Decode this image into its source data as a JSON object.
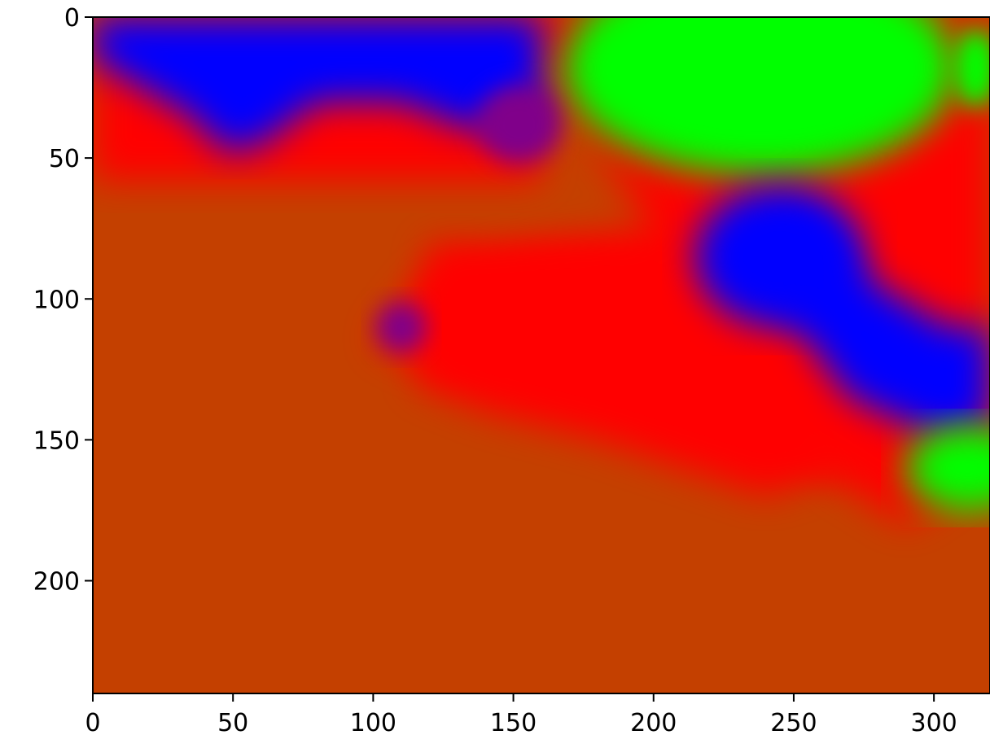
{
  "chart_data": {
    "type": "heatmap",
    "title": "",
    "xlabel": "",
    "ylabel": "",
    "xlim": [
      0,
      320
    ],
    "ylim": [
      240,
      0
    ],
    "x_ticks": [
      0,
      50,
      100,
      150,
      200,
      250,
      300
    ],
    "y_ticks": [
      0,
      50,
      100,
      150,
      200
    ],
    "grid": false,
    "colors": {
      "background": "#c44000",
      "red": "#ff0000",
      "blue": "#0000ff",
      "green": "#00ff00",
      "purple": "#80008a"
    },
    "regions": [
      {
        "color": "red",
        "shape": "rect",
        "x0": 0,
        "x1": 160,
        "y0": 0,
        "y1": 58
      },
      {
        "color": "red",
        "shape": "polygon",
        "points": [
          [
            150,
            0
          ],
          [
            320,
            0
          ],
          [
            320,
            160
          ],
          [
            290,
            180
          ],
          [
            250,
            155
          ],
          [
            200,
            135
          ],
          [
            150,
            125
          ],
          [
            120,
            125
          ],
          [
            100,
            115
          ],
          [
            120,
            90
          ],
          [
            160,
            80
          ],
          [
            200,
            75
          ]
        ]
      },
      {
        "color": "red",
        "shape": "polygon",
        "points": [
          [
            120,
            80
          ],
          [
            200,
            85
          ],
          [
            250,
            120
          ],
          [
            270,
            160
          ],
          [
            240,
            170
          ],
          [
            180,
            150
          ],
          [
            140,
            140
          ],
          [
            115,
            130
          ]
        ]
      },
      {
        "color": "blue",
        "shape": "polygon",
        "points": [
          [
            0,
            0
          ],
          [
            160,
            0
          ],
          [
            160,
            35
          ],
          [
            135,
            40
          ],
          [
            110,
            30
          ],
          [
            80,
            30
          ],
          [
            60,
            45
          ],
          [
            48,
            48
          ],
          [
            35,
            35
          ],
          [
            0,
            15
          ]
        ]
      },
      {
        "color": "green",
        "shape": "ellipse",
        "cx": 238,
        "cy": 18,
        "rx": 70,
        "ry": 38
      },
      {
        "color": "green",
        "shape": "ellipse",
        "cx": 315,
        "cy": 18,
        "rx": 8,
        "ry": 14
      },
      {
        "color": "blue",
        "shape": "ellipse",
        "cx": 245,
        "cy": 85,
        "rx": 30,
        "ry": 25
      },
      {
        "color": "blue",
        "shape": "polygon",
        "points": [
          [
            250,
            70
          ],
          [
            280,
            95
          ],
          [
            305,
            110
          ],
          [
            320,
            110
          ],
          [
            320,
            145
          ],
          [
            300,
            148
          ],
          [
            270,
            135
          ],
          [
            255,
            115
          ],
          [
            245,
            100
          ]
        ]
      },
      {
        "color": "purple",
        "shape": "ellipse",
        "cx": 110,
        "cy": 110,
        "rx": 9,
        "ry": 9
      },
      {
        "color": "purple",
        "shape": "ellipse",
        "cx": 152,
        "cy": 38,
        "rx": 15,
        "ry": 14
      },
      {
        "color": "green",
        "shape": "ellipse",
        "cx": 312,
        "cy": 160,
        "rx": 22,
        "ry": 15
      }
    ]
  }
}
